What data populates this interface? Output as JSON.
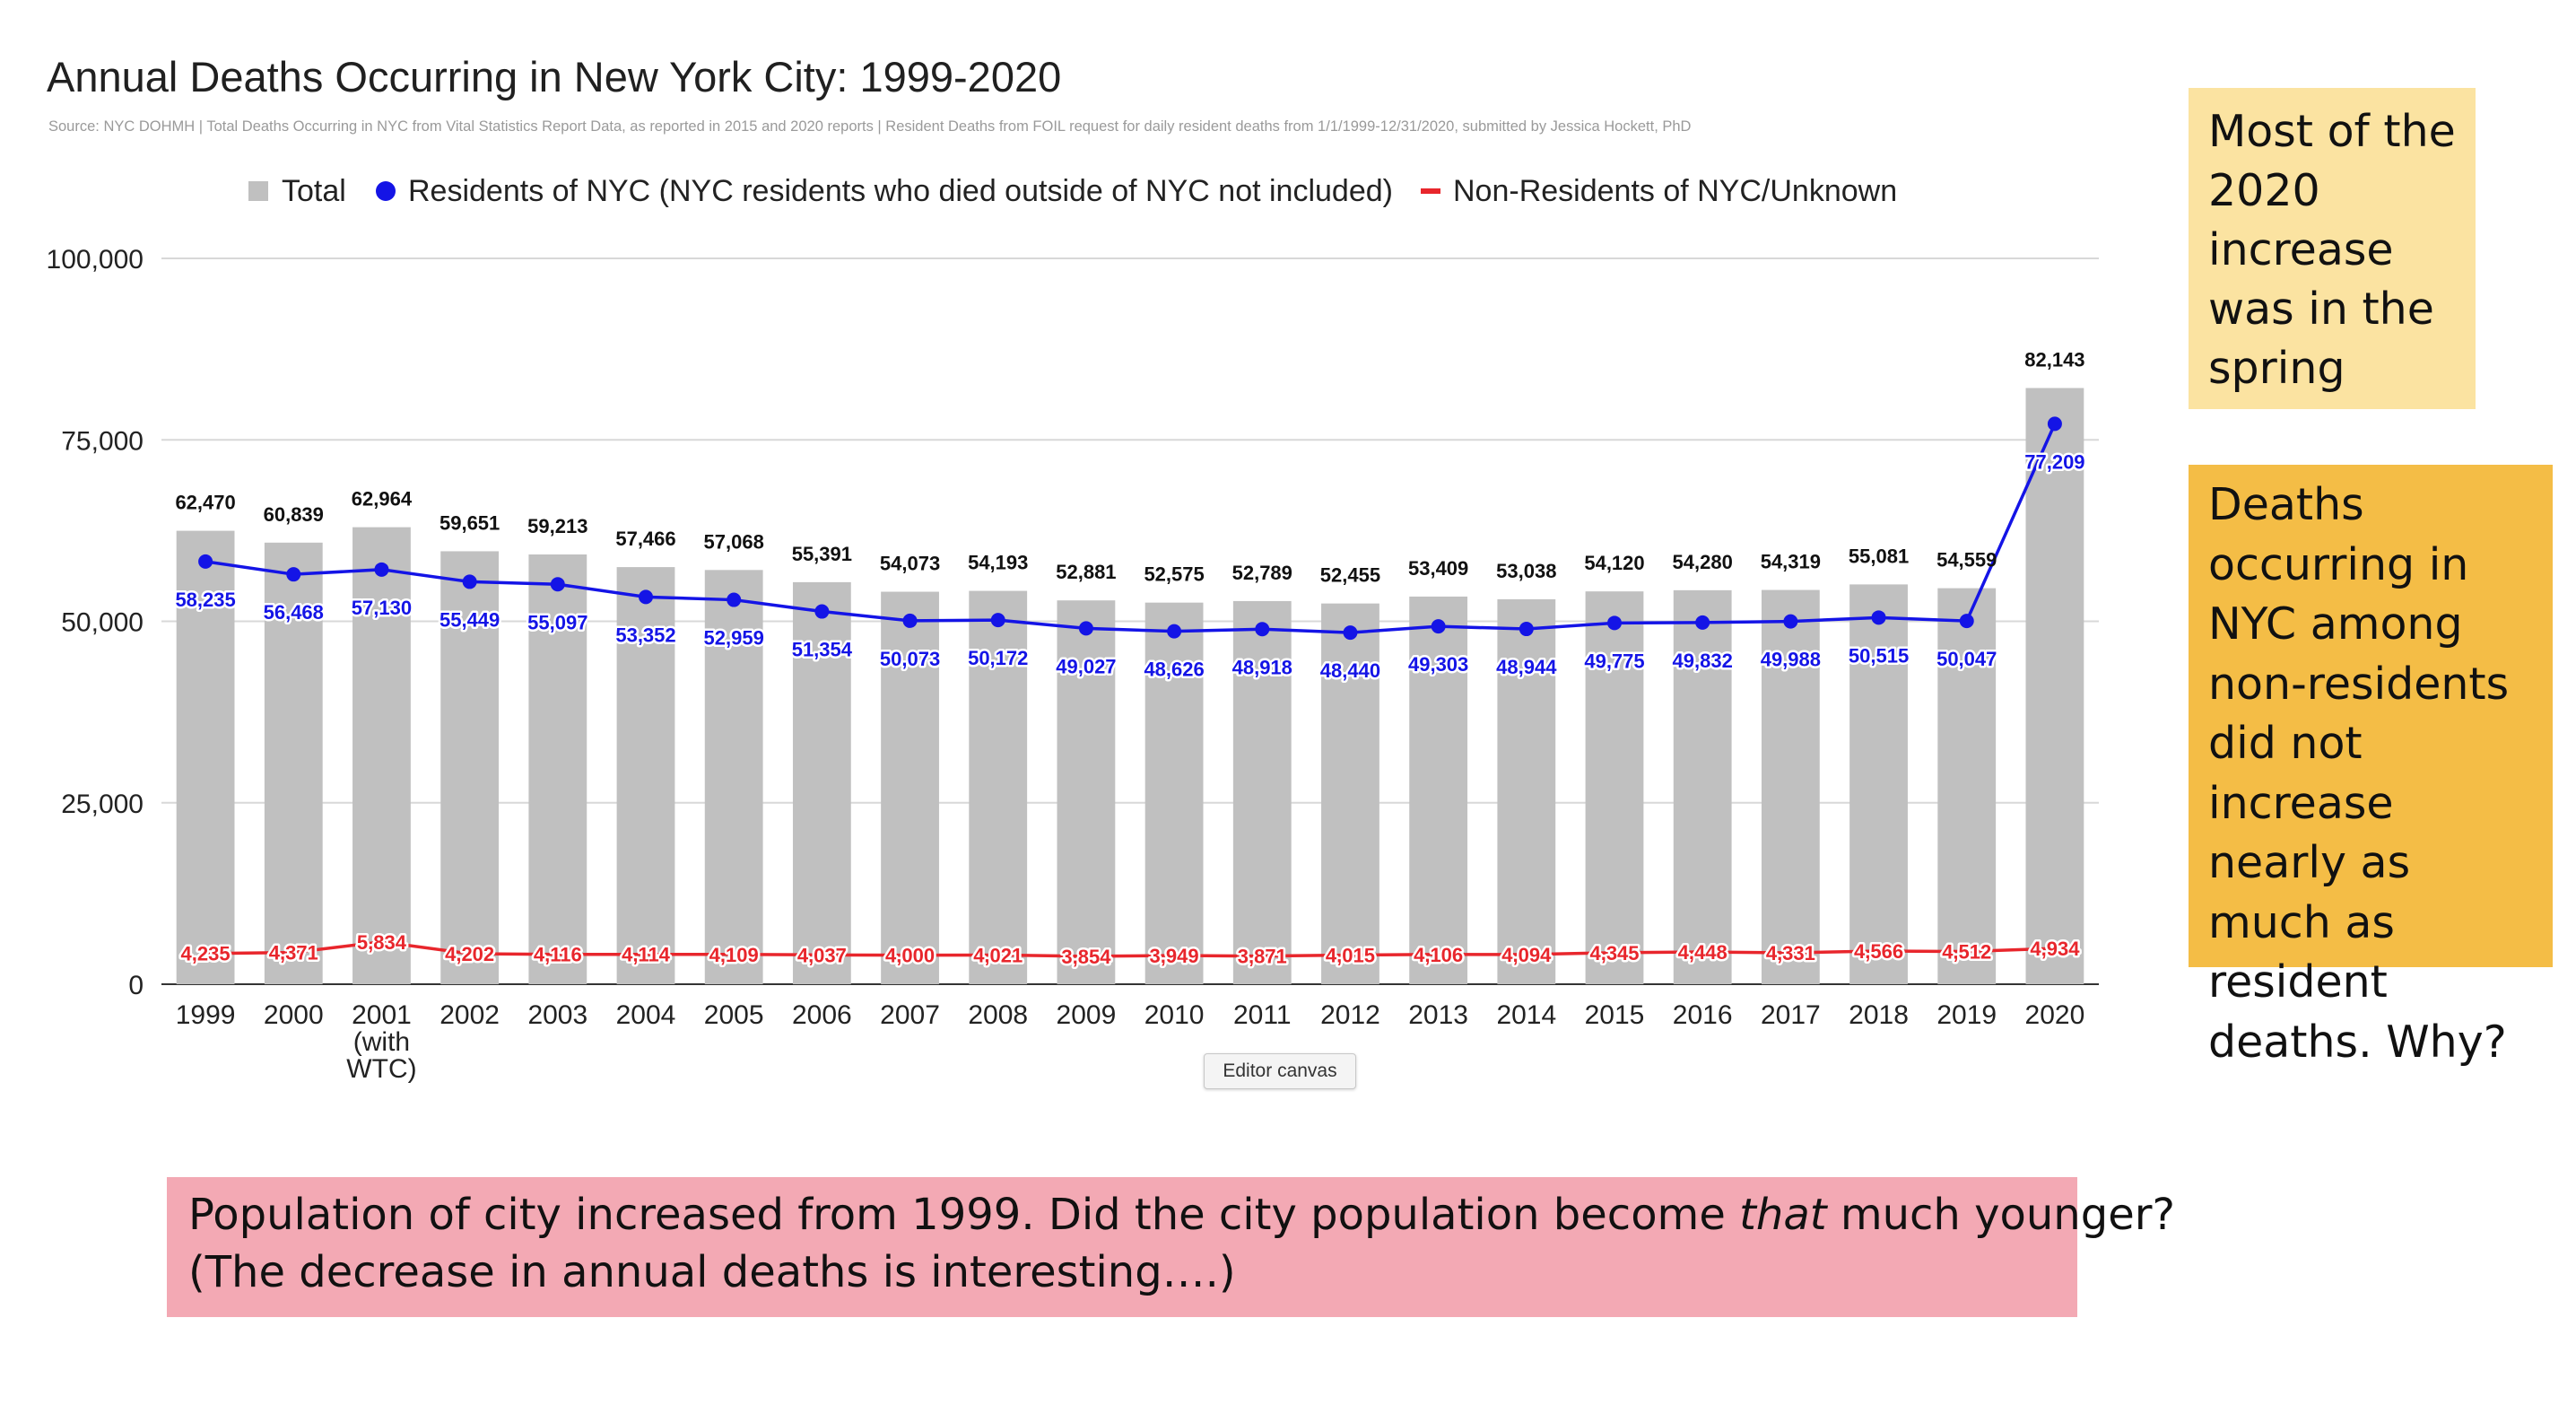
{
  "chart_data": {
    "type": "bar",
    "title": "Annual Deaths Occurring in New York City: 1999-2020",
    "subtitle": "Source: NYC DOHMH | Total Deaths Occurring in NYC from Vital Statistics Report Data, as reported in 2015 and 2020 reports | Resident Deaths from FOIL request for daily resident deaths from 1/1/1999-12/31/2020, submitted by Jessica Hockett, PhD",
    "xlabel": "",
    "ylabel": "",
    "ylim": [
      0,
      100000
    ],
    "yticks": [
      0,
      25000,
      50000,
      75000,
      100000
    ],
    "ytick_labels": [
      "0",
      "25,000",
      "50,000",
      "75,000",
      "100,000"
    ],
    "grid": true,
    "legend_position": "top",
    "categories": [
      "1999",
      "2000",
      "2001 (with WTC)",
      "2002",
      "2003",
      "2004",
      "2005",
      "2006",
      "2007",
      "2008",
      "2009",
      "2010",
      "2011",
      "2012",
      "2013",
      "2014",
      "2015",
      "2016",
      "2017",
      "2018",
      "2019",
      "2020"
    ],
    "series": [
      {
        "name": "Total",
        "kind": "bar",
        "color": "#c0c0c0",
        "label_color": "#111111",
        "values": [
          62470,
          60839,
          62964,
          59651,
          59213,
          57466,
          57068,
          55391,
          54073,
          54193,
          52881,
          52575,
          52789,
          52455,
          53409,
          53038,
          54120,
          54280,
          54319,
          55081,
          54559,
          82143
        ]
      },
      {
        "name": "Residents of NYC (NYC residents who died outside of NYC not included)",
        "kind": "line",
        "color": "#1414e6",
        "label_color": "#1414e6",
        "values": [
          58235,
          56468,
          57130,
          55449,
          55097,
          53352,
          52959,
          51354,
          50073,
          50172,
          49027,
          48626,
          48918,
          48440,
          49303,
          48944,
          49775,
          49832,
          49988,
          50515,
          50047,
          77209
        ]
      },
      {
        "name": "Non-Residents of NYC/Unknown",
        "kind": "line",
        "color": "#e8262c",
        "label_color": "#e8262c",
        "values": [
          4235,
          4371,
          5834,
          4202,
          4116,
          4114,
          4109,
          4037,
          4000,
          4021,
          3854,
          3949,
          3871,
          4015,
          4106,
          4094,
          4345,
          4448,
          4331,
          4566,
          4512,
          4934
        ]
      }
    ]
  },
  "notes": {
    "yellow": "Most of the 2020 increase was in the spring",
    "orange": "Deaths occurring in NYC among non-residents did not increase nearly as much as resident deaths. Why?",
    "pink_line1_before": "Population of city increased from 1999. Did the city population become ",
    "pink_line1_emph": "that",
    "pink_line1_after": " much younger?",
    "pink_line2": "(The decrease in annual deaths is interesting….)"
  },
  "canvas_tag": "Editor canvas"
}
